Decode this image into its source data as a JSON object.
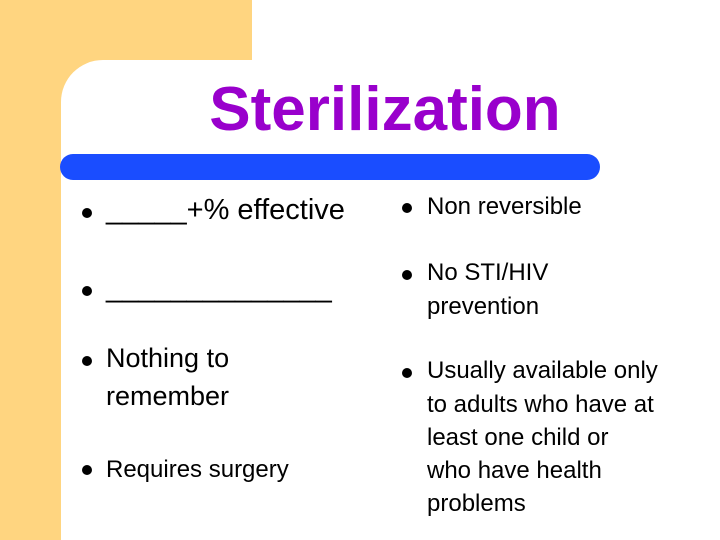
{
  "title": "Sterilization",
  "colors": {
    "accent": "#9900cc",
    "bar": "#1a4dff",
    "corner": "#ffd580"
  },
  "left_bullets": [
    {
      "line1": "_____+% effective"
    },
    {
      "line1": "______________"
    },
    {
      "line1": "Nothing to",
      "line2": "remember"
    },
    {
      "line1": "Requires surgery"
    }
  ],
  "right_bullets": [
    {
      "line1": "Non reversible"
    },
    {
      "line1": "No STI/HIV",
      "line2": "prevention"
    },
    {
      "line1": "Usually available only",
      "line2": "to adults who have at",
      "line3": "least one child or",
      "line4": "who have health",
      "line5": "problems"
    }
  ]
}
